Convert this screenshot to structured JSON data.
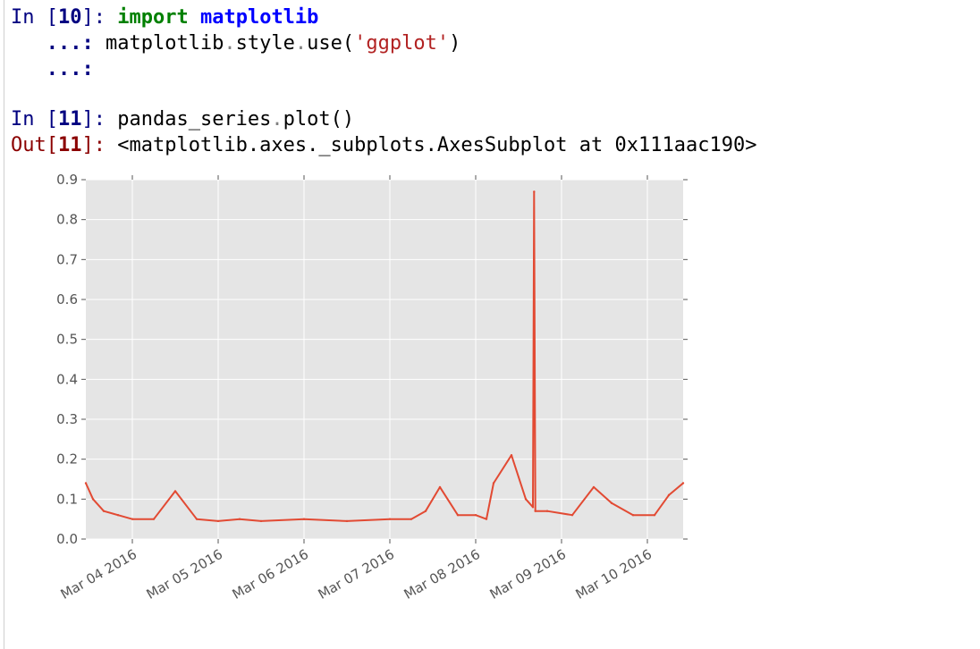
{
  "cells": [
    {
      "in_prompt": "In [",
      "in_number": "10",
      "in_suffix": "]:",
      "line1_kw": "import",
      "line1_mod": "matplotlib",
      "line2_prefix": "   ...:",
      "line2_a": "matplotlib",
      "line2_b": "style",
      "line2_c": "use(",
      "line2_str": "'ggplot'",
      "line2_end": ")",
      "line3_prefix": "   ...:"
    },
    {
      "in_prompt": "In [",
      "in_number": "11",
      "in_suffix": "]:",
      "code_a": "pandas_series",
      "code_b": "plot()",
      "out_prompt": "Out[",
      "out_number": "11",
      "out_suffix": "]:",
      "out_text": "<matplotlib.axes._subplots.AxesSubplot at 0x111aac190>"
    }
  ],
  "colors": {
    "plot_background": "#e5e5e5",
    "grid": "#ffffff",
    "line": "#e24a33"
  },
  "chart_data": {
    "type": "line",
    "title": "",
    "xlabel": "",
    "ylabel": "",
    "ylim": [
      0.0,
      0.9
    ],
    "xlim": [
      "2016-03-03 11:00",
      "2016-03-10 10:00"
    ],
    "grid": true,
    "yticks": [
      "0.0",
      "0.1",
      "0.2",
      "0.3",
      "0.4",
      "0.5",
      "0.6",
      "0.7",
      "0.8",
      "0.9"
    ],
    "xticks": [
      "Mar 04 2016",
      "Mar 05 2016",
      "Mar 06 2016",
      "Mar 07 2016",
      "Mar 08 2016",
      "Mar 09 2016",
      "Mar 10 2016"
    ],
    "series": [
      {
        "x": [
          "2016-03-03 11:00",
          "2016-03-03 13:00",
          "2016-03-03 16:00",
          "2016-03-03 20:00",
          "2016-03-04 00:00",
          "2016-03-04 06:00",
          "2016-03-04 12:00",
          "2016-03-04 18:00",
          "2016-03-05 00:00",
          "2016-03-05 06:00",
          "2016-03-05 12:00",
          "2016-03-06 00:00",
          "2016-03-06 12:00",
          "2016-03-07 00:00",
          "2016-03-07 06:00",
          "2016-03-07 10:00",
          "2016-03-07 14:00",
          "2016-03-07 19:00",
          "2016-03-08 00:00",
          "2016-03-08 03:00",
          "2016-03-08 05:00",
          "2016-03-08 10:00",
          "2016-03-08 14:00",
          "2016-03-08 16:00",
          "2016-03-08 16:20",
          "2016-03-08 16:40",
          "2016-03-08 20:00",
          "2016-03-09 03:00",
          "2016-03-09 09:00",
          "2016-03-09 14:00",
          "2016-03-09 20:00",
          "2016-03-10 02:00",
          "2016-03-10 06:00",
          "2016-03-10 10:00"
        ],
        "y": [
          0.14,
          0.1,
          0.07,
          0.06,
          0.05,
          0.05,
          0.12,
          0.05,
          0.045,
          0.05,
          0.045,
          0.05,
          0.045,
          0.05,
          0.05,
          0.07,
          0.13,
          0.06,
          0.06,
          0.05,
          0.14,
          0.21,
          0.1,
          0.08,
          0.87,
          0.07,
          0.07,
          0.06,
          0.13,
          0.09,
          0.06,
          0.06,
          0.11,
          0.14
        ]
      }
    ]
  }
}
